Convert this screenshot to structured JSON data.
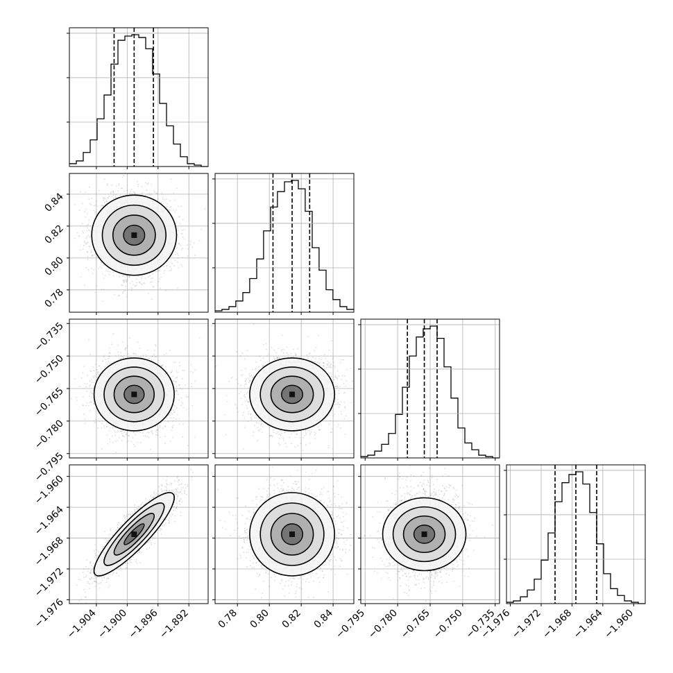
{
  "chart_data": {
    "type": "corner",
    "grid": true,
    "parameters": [
      {
        "range": [
          -1.9075,
          -1.8895
        ],
        "ticks": [
          -1.904,
          -1.9,
          -1.896,
          -1.892
        ],
        "tick_labels": [
          "−1.904",
          "−1.900",
          "−1.896",
          "−1.892"
        ],
        "quantiles": [
          -1.9017,
          -1.8991,
          -1.8966
        ]
      },
      {
        "range": [
          0.766,
          0.853
        ],
        "ticks": [
          0.78,
          0.8,
          0.82,
          0.84
        ],
        "tick_labels": [
          "0.78",
          "0.80",
          "0.82",
          "0.84"
        ],
        "quantiles": [
          0.8023,
          0.8143,
          0.8253
        ]
      },
      {
        "range": [
          -0.797,
          -0.733
        ],
        "ticks": [
          -0.795,
          -0.78,
          -0.765,
          -0.75,
          -0.735
        ],
        "tick_labels": [
          "−0.795",
          "−0.780",
          "−0.765",
          "−0.750",
          "−0.735"
        ],
        "quantiles": [
          -0.7755,
          -0.7677,
          -0.7618
        ]
      },
      {
        "range": [
          -1.9765,
          -1.9585
        ],
        "ticks": [
          -1.976,
          -1.972,
          -1.968,
          -1.964,
          -1.96
        ],
        "tick_labels": [
          "−1.976",
          "−1.972",
          "−1.968",
          "−1.964",
          "−1.960"
        ],
        "quantiles": [
          -1.9702,
          -1.9675,
          -1.9648
        ]
      }
    ],
    "histograms": [
      {
        "bin_edges": [
          -1.9075,
          -1.9066,
          -1.9057,
          -1.9048,
          -1.9039,
          -1.903,
          -1.9021,
          -1.9012,
          -1.9003,
          -1.8994,
          -1.8985,
          -1.8976,
          -1.8967,
          -1.8958,
          -1.8949,
          -1.894,
          -1.8931,
          -1.8922,
          -1.8913,
          -1.8904,
          -1.8895
        ],
        "counts": [
          2,
          4,
          10,
          19,
          34,
          51,
          73,
          90,
          93,
          94,
          92,
          84,
          66,
          45,
          29,
          16,
          7,
          2,
          1,
          0
        ]
      },
      {
        "bin_edges": [
          0.766,
          0.7703,
          0.7747,
          0.779,
          0.7834,
          0.7877,
          0.7921,
          0.7964,
          0.8008,
          0.8051,
          0.8095,
          0.8138,
          0.8182,
          0.8225,
          0.8269,
          0.8312,
          0.8356,
          0.8399,
          0.8443,
          0.8486,
          0.853
        ],
        "counts": [
          1,
          2,
          4,
          8,
          14,
          24,
          38,
          58,
          75,
          86,
          93,
          94,
          88,
          72,
          46,
          30,
          16,
          9,
          4,
          2
        ]
      },
      {
        "bin_edges": [
          -0.797,
          -0.7938,
          -0.7906,
          -0.7874,
          -0.7842,
          -0.781,
          -0.7778,
          -0.7746,
          -0.7714,
          -0.7682,
          -0.765,
          -0.7618,
          -0.7586,
          -0.7554,
          -0.7522,
          -0.749,
          -0.7458,
          -0.7426,
          -0.7394,
          -0.7362,
          -0.733
        ],
        "counts": [
          1,
          2,
          5,
          10,
          18,
          32,
          52,
          75,
          89,
          95,
          97,
          88,
          67,
          44,
          22,
          11,
          6,
          2,
          1,
          0
        ]
      },
      {
        "bin_edges": [
          -1.9765,
          -1.9756,
          -1.9747,
          -1.9738,
          -1.9729,
          -1.972,
          -1.9711,
          -1.9702,
          -1.9693,
          -1.9684,
          -1.9675,
          -1.9666,
          -1.9657,
          -1.9648,
          -1.9639,
          -1.963,
          -1.9621,
          -1.9612,
          -1.9603,
          -1.9594,
          -1.9585
        ],
        "counts": [
          1,
          2,
          5,
          10,
          18,
          32,
          52,
          75,
          89,
          95,
          97,
          88,
          67,
          44,
          22,
          11,
          6,
          2,
          1,
          0
        ]
      }
    ],
    "pairs": [
      {
        "x": 0,
        "y": 1,
        "center": [
          -1.8991,
          0.8143
        ],
        "sigma": [
          0.0026,
          0.0133
        ],
        "corr": 0.0
      },
      {
        "x": 0,
        "y": 2,
        "center": [
          -1.8991,
          -0.7677
        ],
        "sigma": [
          0.0026,
          0.0084
        ],
        "corr": 0.0
      },
      {
        "x": 1,
        "y": 2,
        "center": [
          0.8143,
          -0.7677
        ],
        "sigma": [
          0.0133,
          0.0084
        ],
        "corr": 0.0
      },
      {
        "x": 0,
        "y": 3,
        "center": [
          -1.8991,
          -1.9675
        ],
        "sigma": [
          0.0026,
          0.0027
        ],
        "corr": 0.88
      },
      {
        "x": 1,
        "y": 3,
        "center": [
          0.8143,
          -1.9675
        ],
        "sigma": [
          0.0133,
          0.0027
        ],
        "corr": 0.0
      },
      {
        "x": 2,
        "y": 3,
        "center": [
          -0.7677,
          -1.9675
        ],
        "sigma": [
          0.0084,
          0.0027
        ],
        "corr": 0.0
      }
    ],
    "contour_levels_sigma": [
      0.5,
      1.0,
      1.5,
      2.0
    ]
  }
}
